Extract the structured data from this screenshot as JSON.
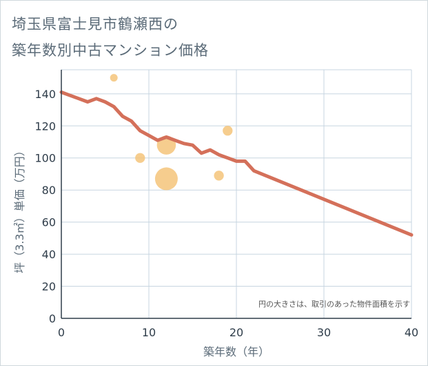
{
  "title_lines": [
    "埼玉県富士見市鶴瀬西の",
    "築年数別中古マンション価格"
  ],
  "chart_data": {
    "type": "scatter",
    "xlabel": "築年数（年）",
    "ylabel": "坪（3.3㎡）単価（万円）",
    "xlim": [
      0,
      40
    ],
    "ylim": [
      0,
      155
    ],
    "x_ticks": [
      "0",
      "10",
      "20",
      "30",
      "40"
    ],
    "y_ticks": [
      "0",
      "20",
      "40",
      "60",
      "80",
      "100",
      "120",
      "140"
    ],
    "grid": true,
    "note": "円の大きさは、取引のあった物件面積を示す",
    "bubble_color": "#f5c47a",
    "line_color": "#d4705a",
    "bubbles": [
      {
        "x": 6,
        "y": 150,
        "size": 1
      },
      {
        "x": 9,
        "y": 100,
        "size": 1.3
      },
      {
        "x": 12,
        "y": 108,
        "size": 2.5
      },
      {
        "x": 12,
        "y": 87,
        "size": 3
      },
      {
        "x": 18,
        "y": 89,
        "size": 1.3
      },
      {
        "x": 19,
        "y": 117,
        "size": 1.3
      }
    ],
    "trend_line": [
      {
        "x": 0,
        "y": 141
      },
      {
        "x": 1,
        "y": 139
      },
      {
        "x": 2,
        "y": 137
      },
      {
        "x": 3,
        "y": 135
      },
      {
        "x": 4,
        "y": 137
      },
      {
        "x": 5,
        "y": 135
      },
      {
        "x": 6,
        "y": 132
      },
      {
        "x": 7,
        "y": 126
      },
      {
        "x": 8,
        "y": 123
      },
      {
        "x": 9,
        "y": 117
      },
      {
        "x": 10,
        "y": 114
      },
      {
        "x": 11,
        "y": 111
      },
      {
        "x": 12,
        "y": 113
      },
      {
        "x": 13,
        "y": 111
      },
      {
        "x": 14,
        "y": 109
      },
      {
        "x": 15,
        "y": 108
      },
      {
        "x": 16,
        "y": 103
      },
      {
        "x": 17,
        "y": 105
      },
      {
        "x": 18,
        "y": 102
      },
      {
        "x": 19,
        "y": 100
      },
      {
        "x": 20,
        "y": 98
      },
      {
        "x": 21,
        "y": 98
      },
      {
        "x": 22,
        "y": 92
      },
      {
        "x": 40,
        "y": 52
      }
    ]
  }
}
